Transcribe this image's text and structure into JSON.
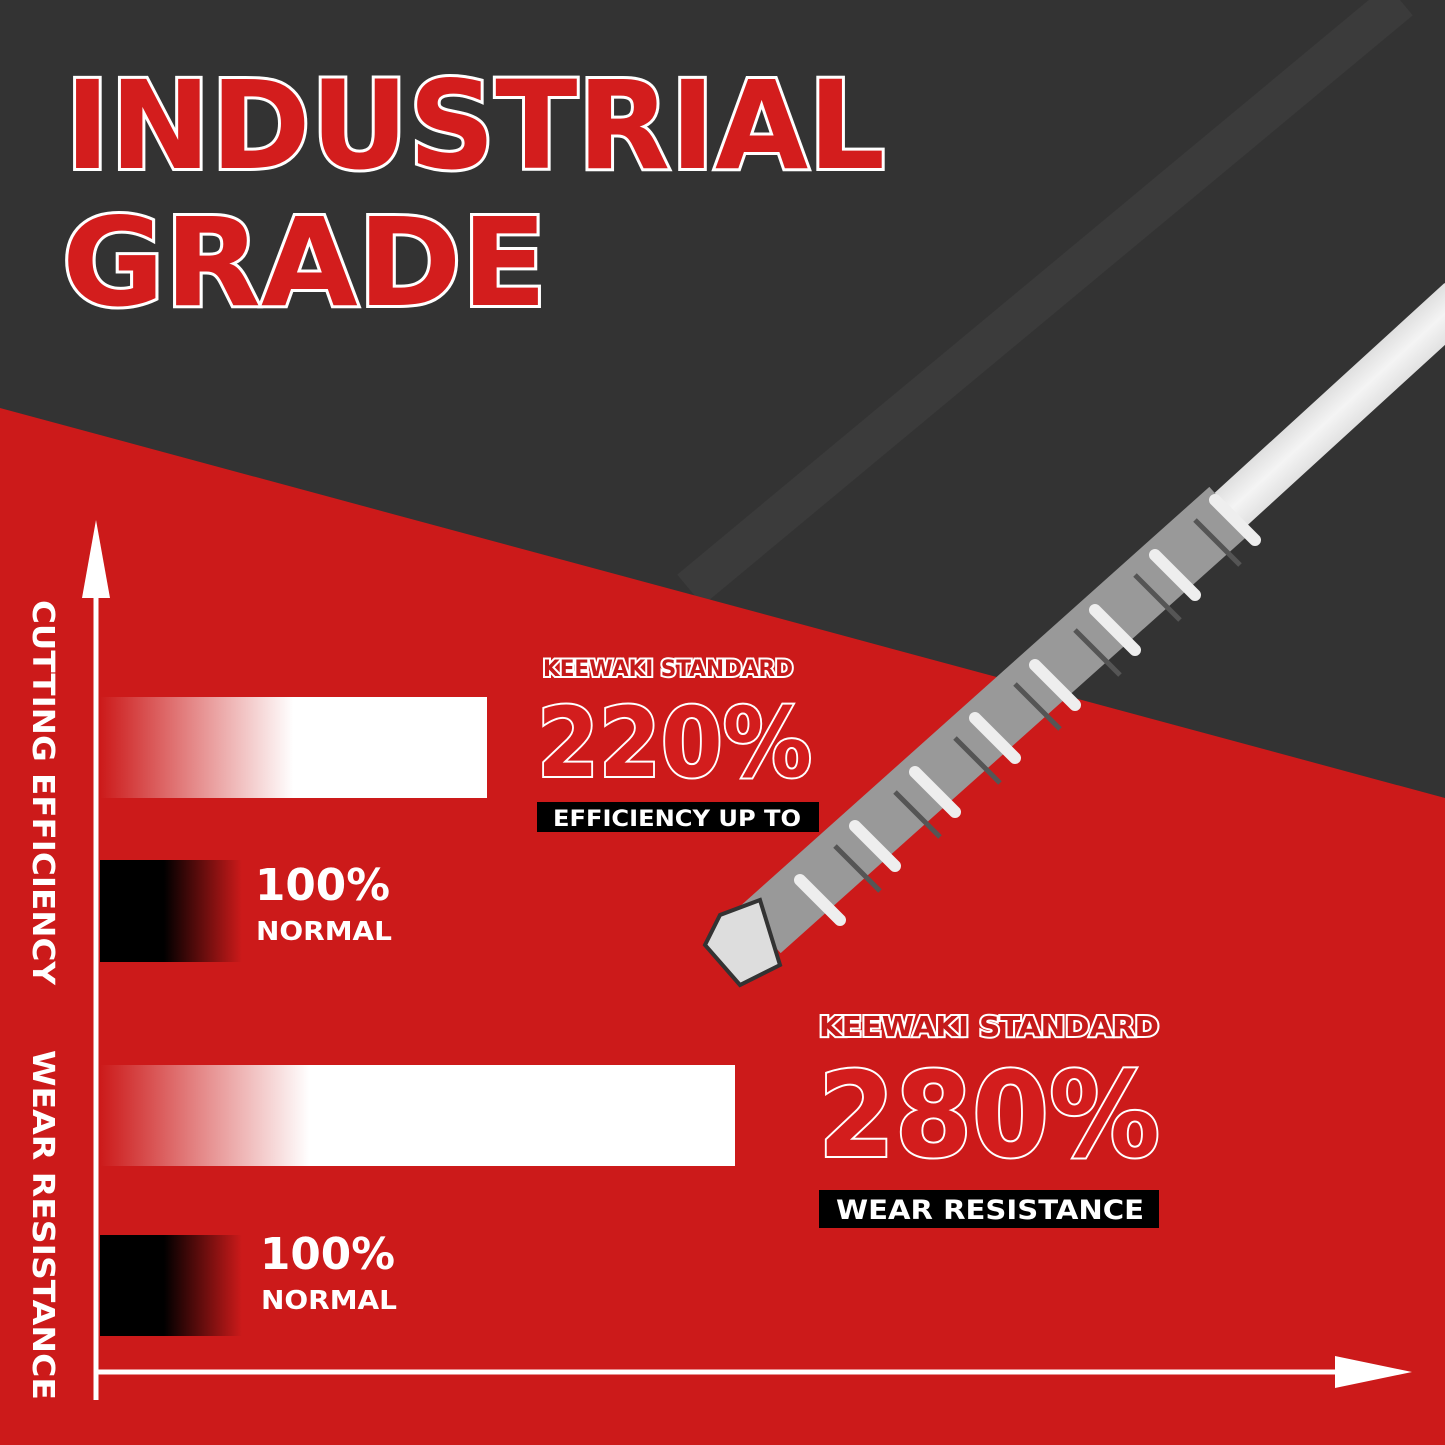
{
  "title": {
    "line1": "INDUSTRIAL",
    "line2": "GRADE"
  },
  "axis_labels": {
    "top": "CUTTING EFFICIENCY",
    "bottom": "WEAR RESISTANCE"
  },
  "efficiency": {
    "brand": "KEEWAKI STANDARD",
    "value": "220%",
    "caption": "EFFICIENCY UP TO",
    "normal_value": "100%",
    "normal_label": "NORMAL"
  },
  "wear": {
    "brand": "KEEWAKI  STANDARD",
    "value": "280%",
    "caption": "WEAR RESISTANCE",
    "normal_value": "100%",
    "normal_label": "NORMAL"
  },
  "colors": {
    "red": "#cc1a1a",
    "dark": "#333333",
    "white": "#ffffff",
    "black": "#000000"
  }
}
